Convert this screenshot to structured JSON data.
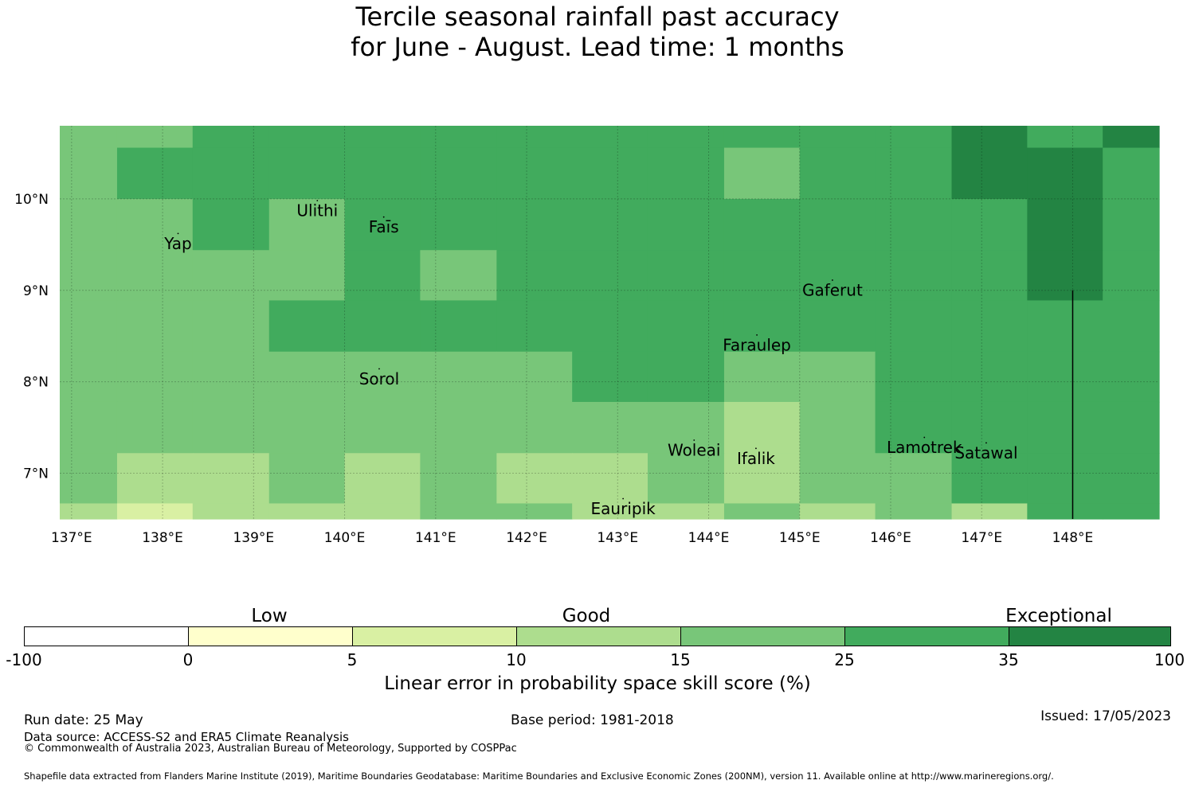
{
  "title": {
    "line1": "Tercile seasonal rainfall past accuracy",
    "line2": "for June - August. Lead time: 1 months"
  },
  "map": {
    "lon_labels": [
      "137°E",
      "138°E",
      "139°E",
      "140°E",
      "141°E",
      "142°E",
      "143°E",
      "144°E",
      "145°E",
      "146°E",
      "147°E",
      "148°E"
    ],
    "lat_labels": [
      "10°N",
      "9°N",
      "8°N",
      "7°N"
    ],
    "extent": {
      "lon_min": 136.87,
      "lon_max": 148.95,
      "lat_min": 6.5,
      "lat_max": 10.8
    },
    "grid_note_lons": [
      137,
      138,
      139,
      140,
      141,
      142,
      143,
      144,
      145,
      146,
      147,
      148
    ],
    "grid_note_lats": [
      10,
      9,
      8,
      7
    ],
    "cells": {
      "col_edges_lon": [
        136.87,
        137.5,
        138.33,
        139.17,
        140.0,
        140.83,
        141.67,
        142.5,
        143.33,
        144.17,
        145.0,
        145.83,
        146.67,
        147.5,
        148.33,
        148.95
      ],
      "row_edges_lat": [
        10.8,
        10.56,
        10.0,
        9.44,
        8.89,
        8.33,
        7.78,
        7.22,
        6.67,
        6.5
      ],
      "grid": [
        [
          4,
          4,
          5,
          5,
          5,
          5,
          5,
          5,
          5,
          5,
          5,
          5,
          6,
          5,
          6
        ],
        [
          4,
          5,
          5,
          5,
          5,
          5,
          5,
          5,
          5,
          4,
          5,
          5,
          6,
          6,
          5
        ],
        [
          4,
          4,
          5,
          4,
          5,
          5,
          5,
          5,
          5,
          5,
          5,
          5,
          5,
          6,
          5
        ],
        [
          4,
          4,
          4,
          4,
          5,
          4,
          5,
          5,
          5,
          5,
          5,
          5,
          5,
          6,
          5
        ],
        [
          4,
          4,
          4,
          5,
          5,
          5,
          5,
          5,
          5,
          5,
          5,
          5,
          5,
          5,
          5
        ],
        [
          4,
          4,
          4,
          4,
          4,
          4,
          4,
          5,
          5,
          4,
          4,
          5,
          5,
          5,
          5
        ],
        [
          4,
          4,
          4,
          4,
          4,
          4,
          4,
          4,
          4,
          3,
          4,
          5,
          5,
          5,
          5
        ],
        [
          4,
          3,
          3,
          4,
          3,
          4,
          3,
          3,
          4,
          3,
          4,
          4,
          5,
          5,
          5
        ],
        [
          3,
          2,
          3,
          3,
          3,
          4,
          4,
          3,
          3,
          4,
          3,
          4,
          3,
          5,
          5
        ]
      ]
    },
    "islands": [
      {
        "name": "Ulithi",
        "lon": 139.7,
        "lat": 9.86
      },
      {
        "name": "Faīs",
        "lon": 140.43,
        "lat": 9.68
      },
      {
        "name": "Yap",
        "lon": 138.17,
        "lat": 9.5
      },
      {
        "name": "Gaferut",
        "lon": 145.36,
        "lat": 8.99
      },
      {
        "name": "Faraulep",
        "lon": 144.53,
        "lat": 8.39
      },
      {
        "name": "Sorol",
        "lon": 140.38,
        "lat": 8.02
      },
      {
        "name": "Woleai",
        "lon": 143.84,
        "lat": 7.24
      },
      {
        "name": "Ifalik",
        "lon": 144.52,
        "lat": 7.15
      },
      {
        "name": "Lamotrek",
        "lon": 146.37,
        "lat": 7.27
      },
      {
        "name": "Satawal",
        "lon": 147.05,
        "lat": 7.21
      },
      {
        "name": "Eauripik",
        "lon": 143.06,
        "lat": 6.6
      }
    ],
    "boundary_line": {
      "lon": 148.0,
      "lat_from": 9.0,
      "lat_to": 6.5
    }
  },
  "colorbar": {
    "colors": [
      "#ffffff",
      "#ffffcc",
      "#d9f0a3",
      "#addd8e",
      "#78c679",
      "#41ab5d",
      "#238443"
    ],
    "ticks": [
      "-100",
      "0",
      "5",
      "10",
      "15",
      "25",
      "35",
      "100"
    ],
    "categories": [
      "Low",
      "Good",
      "Exceptional"
    ],
    "label": "Linear error in probability space skill score (%)"
  },
  "footer": {
    "run_date": "Run date: 25 May",
    "base_period": "Base period: 1981-2018",
    "issued": "Issued: 17/05/2023",
    "data_source": "Data source: ACCESS-S2 and ERA5 Climate Reanalysis",
    "copyright": "© Commonwealth of Australia 2023, Australian Bureau of Meteorology, Supported by COSPPac",
    "shapefile": "Shapefile data extracted from Flanders Marine Institute (2019), Maritime Boundaries Geodatabase: Maritime Boundaries and Exclusive Economic Zones (200NM), version 11. Available online at http://www.marineregions.org/."
  }
}
